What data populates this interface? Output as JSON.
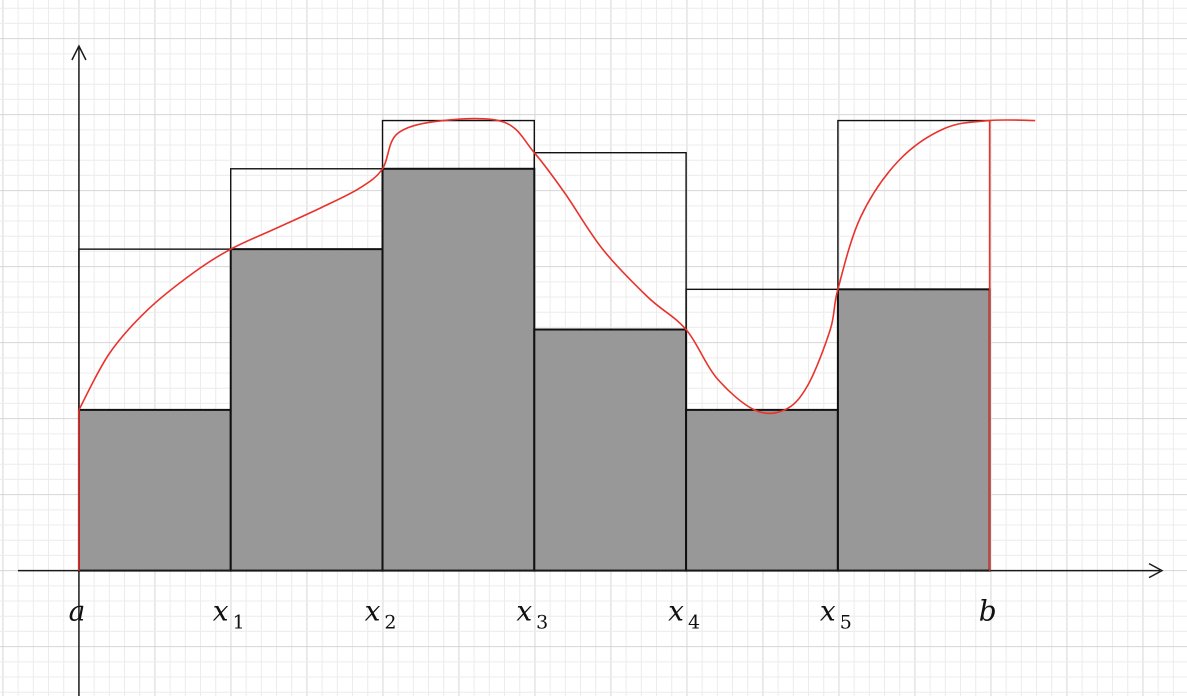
{
  "diagram": {
    "kind": "lower and upper Riemann sums",
    "colors": {
      "background": "#ffffff",
      "grid_minor": "#ececec",
      "grid_major": "#d6d6d6",
      "axis": "#1a1a1a",
      "lower_fill": "#999899",
      "outline": "#111111",
      "curve": "#e8332d"
    },
    "partition": [
      0,
      1,
      2,
      3,
      4,
      5,
      6
    ],
    "tick_labels": [
      {
        "main": "a",
        "sub": ""
      },
      {
        "main": "x",
        "sub": "1"
      },
      {
        "main": "x",
        "sub": "2"
      },
      {
        "main": "x",
        "sub": "3"
      },
      {
        "main": "x",
        "sub": "4"
      },
      {
        "main": "x",
        "sub": "5"
      },
      {
        "main": "b",
        "sub": ""
      }
    ],
    "lower_heights": [
      1.0,
      2.0,
      2.5,
      1.5,
      1.0,
      1.75
    ],
    "upper_heights": [
      2.0,
      2.5,
      2.8,
      2.6,
      1.75,
      2.8
    ],
    "curve_points": [
      [
        0.0,
        1.0
      ],
      [
        0.2,
        1.35
      ],
      [
        0.45,
        1.62
      ],
      [
        0.75,
        1.85
      ],
      [
        1.0,
        2.0
      ],
      [
        1.3,
        2.13
      ],
      [
        1.6,
        2.26
      ],
      [
        1.85,
        2.38
      ],
      [
        2.0,
        2.5
      ],
      [
        2.1,
        2.72
      ],
      [
        2.4,
        2.8
      ],
      [
        2.8,
        2.79
      ],
      [
        3.0,
        2.6
      ],
      [
        3.2,
        2.35
      ],
      [
        3.45,
        2.0
      ],
      [
        3.75,
        1.7
      ],
      [
        4.0,
        1.5
      ],
      [
        4.2,
        1.2
      ],
      [
        4.45,
        1.0
      ],
      [
        4.65,
        1.0
      ],
      [
        4.8,
        1.15
      ],
      [
        4.95,
        1.5
      ],
      [
        5.0,
        1.75
      ],
      [
        5.15,
        2.2
      ],
      [
        5.4,
        2.55
      ],
      [
        5.7,
        2.75
      ],
      [
        6.0,
        2.8
      ],
      [
        6.3,
        2.8
      ]
    ],
    "x_range": [
      -0.52,
      7.3
    ],
    "y_range": [
      -0.78,
      3.55
    ]
  }
}
